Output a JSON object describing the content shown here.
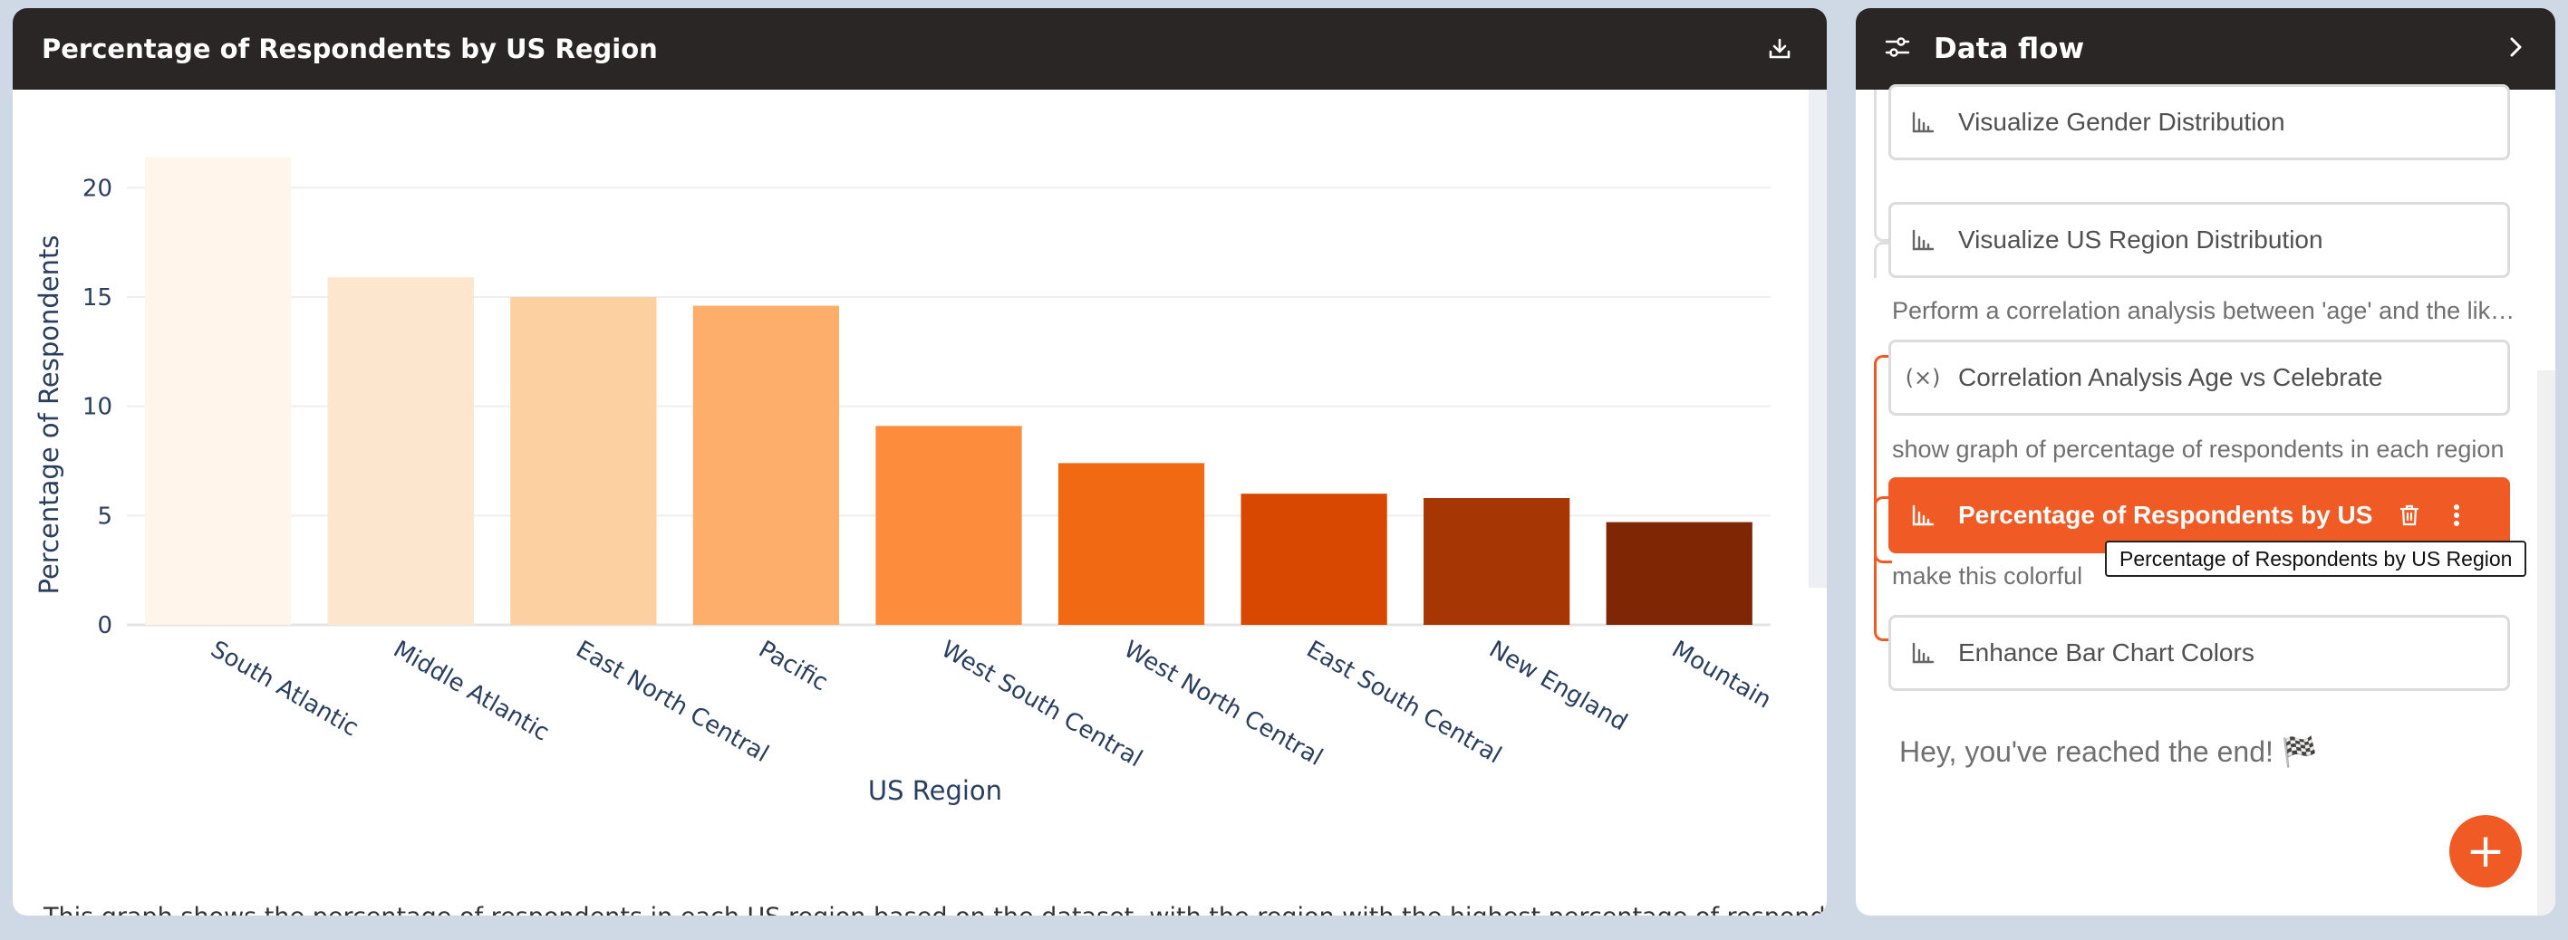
{
  "chart_panel": {
    "title": "Percentage of Respondents by US Region",
    "download_icon": "download-icon",
    "caption": "This graph shows the percentage of respondents in each US region based on the dataset, with the region with the highest percentage of respondents first."
  },
  "chart_data": {
    "type": "bar",
    "categories": [
      "South Atlantic",
      "Middle Atlantic",
      "East North Central",
      "Pacific",
      "West South Central",
      "West North Central",
      "East South Central",
      "New England",
      "Mountain"
    ],
    "values": [
      21.4,
      15.9,
      15.0,
      14.6,
      9.1,
      7.4,
      6.0,
      5.8,
      4.7
    ],
    "colors": [
      "#fff5eb",
      "#fde6ce",
      "#fdd0a2",
      "#fdae6b",
      "#fd8d3c",
      "#f16913",
      "#d94801",
      "#a63603",
      "#7f2704"
    ],
    "xlabel": "US Region",
    "ylabel": "Percentage of Respondents",
    "ylim": [
      0,
      22
    ],
    "yticks": [
      0,
      5,
      10,
      15,
      20
    ],
    "grid": true,
    "legend": false
  },
  "flow_panel": {
    "title": "Data flow",
    "header_icon": "settings-sliders-icon",
    "collapse_icon": "chevron-right-icon",
    "cards": [
      {
        "label": "Visualize Gender Distribution",
        "icon": "bar-chart-icon"
      },
      {
        "label": "Visualize US Region Distribution",
        "icon": "bar-chart-icon"
      },
      {
        "label": "Correlation Analysis Age vs Celebrate",
        "icon": "variable-icon"
      },
      {
        "label": "Percentage of Respondents by US Region",
        "icon": "bar-chart-icon"
      },
      {
        "label": "Enhance Bar Chart Colors",
        "icon": "bar-chart-icon"
      }
    ],
    "prompts": [
      "Perform a correlation analysis between 'age' and the likelihood of celebrating",
      "show graph of percentage of respondents in each region",
      "make this colorful"
    ],
    "tooltip": "Percentage of Respondents by US Region",
    "end_text": "Hey, you've reached the end! 🏁",
    "add_label": "+",
    "accent": "#f05a24"
  }
}
